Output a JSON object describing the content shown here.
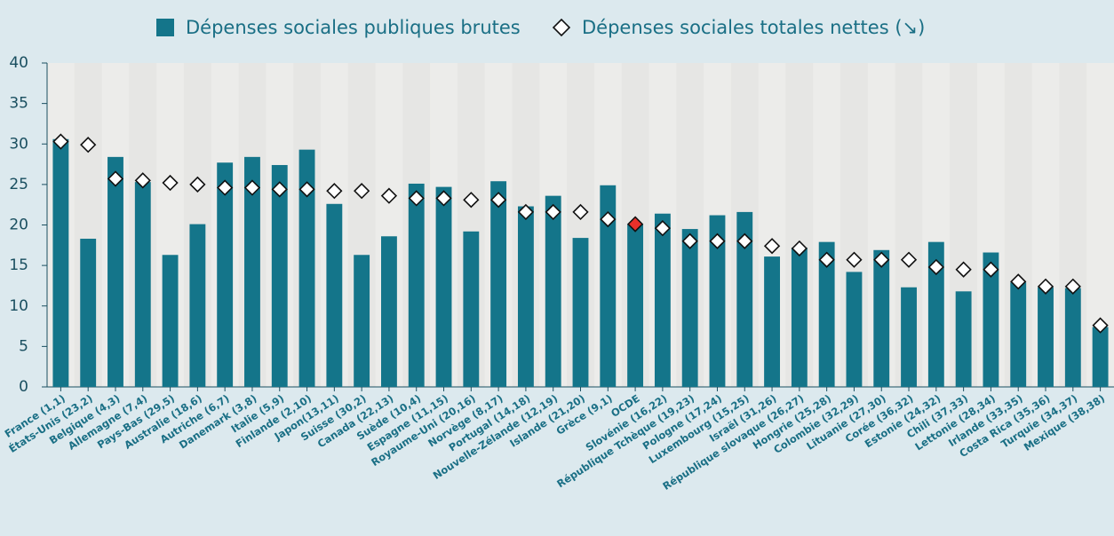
{
  "chart_data": {
    "type": "bar_scatter",
    "categories": [
      "France (1,1)",
      "États-Unis (23,2)",
      "Belgique (4,3)",
      "Allemagne (7,4)",
      "Pays-Bas (29,5)",
      "Australie (18,6)",
      "Autriche (6,7)",
      "Danemark (3,8)",
      "Italie (5,9)",
      "Finlande (2,10)",
      "Japon(13,11)",
      "Suisse (30,2)",
      "Canada (22,13)",
      "Suède (10,4)",
      "Espagne (11,15)",
      "Royaume-Uni (20,16)",
      "Norvège (8,17)",
      "Portugal (14,18)",
      "Nouvelle-Zélande (12,19)",
      "Islande (21,20)",
      "Grèce (9,1)",
      "OCDE",
      "Slovénie (16,22)",
      "République Tchèque (19,23)",
      "Pologne (17,24)",
      "Luxembourg (15,25)",
      "Israël (31,26)",
      "République slovaque (26,27)",
      "Hongrie (25,28)",
      "Colombie (32,29)",
      "Lituanie (27,30)",
      "Corée (36,32)",
      "Estonie (24,32)",
      "Chili (37,33)",
      "Lettonie (28,34)",
      "Irlande (33,35)",
      "Costa Rica (35,36)",
      "Turquie (34,37)",
      "Mexique (38,38)"
    ],
    "series": [
      {
        "name": "Dépenses sociales publiques brutes",
        "color": "#14758a",
        "kind": "bar",
        "values": [
          30.6,
          18.3,
          28.4,
          25.3,
          16.3,
          20.1,
          27.7,
          28.4,
          27.4,
          29.3,
          22.6,
          16.3,
          18.6,
          25.1,
          24.7,
          19.2,
          25.4,
          22.3,
          23.6,
          18.4,
          24.9,
          20.1,
          21.4,
          19.5,
          21.2,
          21.6,
          16.1,
          17.2,
          17.9,
          14.2,
          16.9,
          12.3,
          17.9,
          11.8,
          16.6,
          12.9,
          12.3,
          12.2,
          7.4
        ]
      },
      {
        "name": "Dépenses sociales totales nettes (↘)",
        "color": "#ffffff",
        "kind": "diamond",
        "highlight": {
          "category": "OCDE",
          "color": "#e8302a"
        },
        "values": [
          30.3,
          29.9,
          25.7,
          25.5,
          25.2,
          25.0,
          24.6,
          24.6,
          24.4,
          24.4,
          24.2,
          24.2,
          23.6,
          23.3,
          23.3,
          23.1,
          23.1,
          21.6,
          21.6,
          21.6,
          20.7,
          20.1,
          19.6,
          18.0,
          18.0,
          18.0,
          17.4,
          17.1,
          15.7,
          15.7,
          15.7,
          15.7,
          14.8,
          14.5,
          14.5,
          13.0,
          12.4,
          12.4,
          7.6
        ]
      }
    ],
    "ylim": [
      0,
      40
    ],
    "yticks": [
      0,
      5,
      10,
      15,
      20,
      25,
      30,
      35,
      40
    ],
    "grid": false
  }
}
